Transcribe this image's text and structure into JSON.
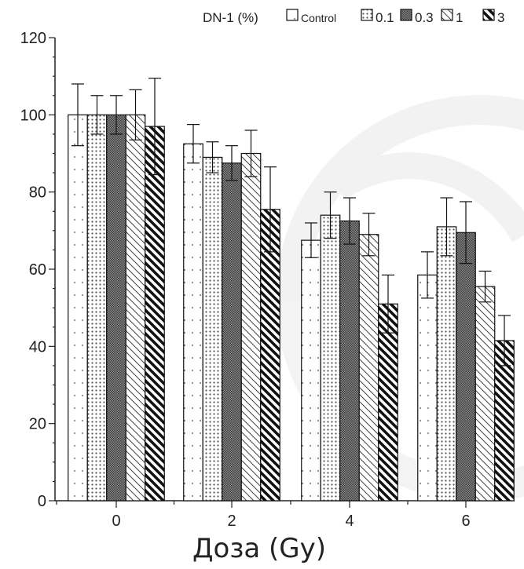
{
  "chart_data": {
    "type": "bar",
    "title": "",
    "xlabel": "Доза (Gy)",
    "ylabel": "",
    "ylim": [
      0,
      120
    ],
    "yticks": [
      0,
      20,
      40,
      60,
      80,
      100,
      120
    ],
    "categories": [
      "0",
      "2",
      "4",
      "6"
    ],
    "legend": {
      "title": "DN-1 (%)",
      "placement": "top"
    },
    "grid": false,
    "series": [
      {
        "name": "Control",
        "pattern": "sparse-dots",
        "values": [
          100,
          92.5,
          67.5,
          58.5
        ],
        "errors": [
          8,
          5,
          4.5,
          6
        ]
      },
      {
        "name": "0.1",
        "pattern": "dense-dots",
        "values": [
          100,
          89,
          74,
          71
        ],
        "errors": [
          5,
          4,
          6,
          7.5
        ]
      },
      {
        "name": "0.3",
        "pattern": "crosshatch",
        "values": [
          100,
          87.5,
          72.5,
          69.5
        ],
        "errors": [
          5,
          4.5,
          6,
          8
        ]
      },
      {
        "name": "1",
        "pattern": "thin-diagonal",
        "values": [
          100,
          90,
          69,
          55.5
        ],
        "errors": [
          6.5,
          6,
          5.5,
          4
        ]
      },
      {
        "name": "3",
        "pattern": "thick-diagonal",
        "values": [
          97,
          75.5,
          51,
          41.5
        ],
        "errors": [
          12.5,
          11,
          7.5,
          6.5
        ]
      }
    ]
  }
}
